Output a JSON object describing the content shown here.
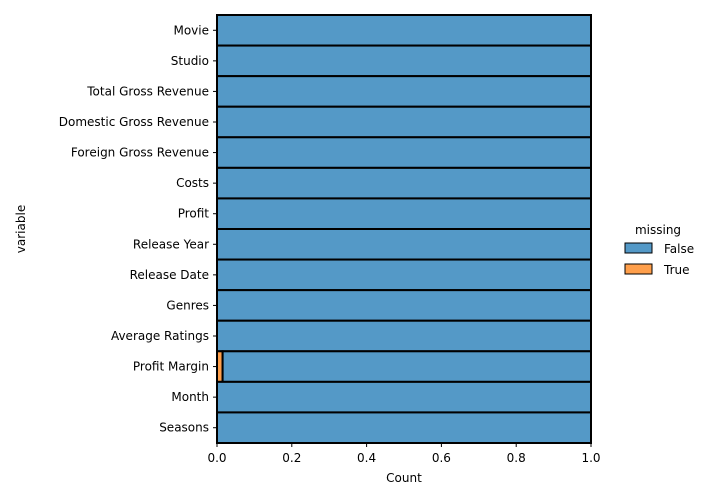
{
  "chart_data": {
    "type": "bar",
    "orientation": "horizontal",
    "stacked": true,
    "categories": [
      "Movie",
      "Studio",
      "Total Gross Revenue",
      "Domestic Gross Revenue",
      "Foreign Gross Revenue",
      "Costs",
      "Profit",
      "Release Year",
      "Release Date",
      "Genres",
      "Average Ratings",
      "Profit Margin",
      "Month",
      "Seasons"
    ],
    "series": [
      {
        "name": "False",
        "color": "#5499c7",
        "values": [
          1,
          1,
          1,
          1,
          1,
          1,
          1,
          1,
          1,
          1,
          1,
          0.985,
          1,
          1
        ]
      },
      {
        "name": "True",
        "color": "#ff9f4b",
        "values": [
          0,
          0,
          0,
          0,
          0,
          0,
          0,
          0,
          0,
          0,
          0,
          0.015,
          0,
          0
        ]
      }
    ],
    "stack_order": [
      "True",
      "False"
    ],
    "xlabel": "Count",
    "ylabel": "variable",
    "xlim": [
      0,
      1
    ],
    "xticks": [
      "0.0",
      "0.2",
      "0.4",
      "0.6",
      "0.8",
      "1.0"
    ],
    "legend": {
      "title": "missing",
      "position": "right",
      "entries": [
        "False",
        "True"
      ]
    },
    "grid": false
  }
}
